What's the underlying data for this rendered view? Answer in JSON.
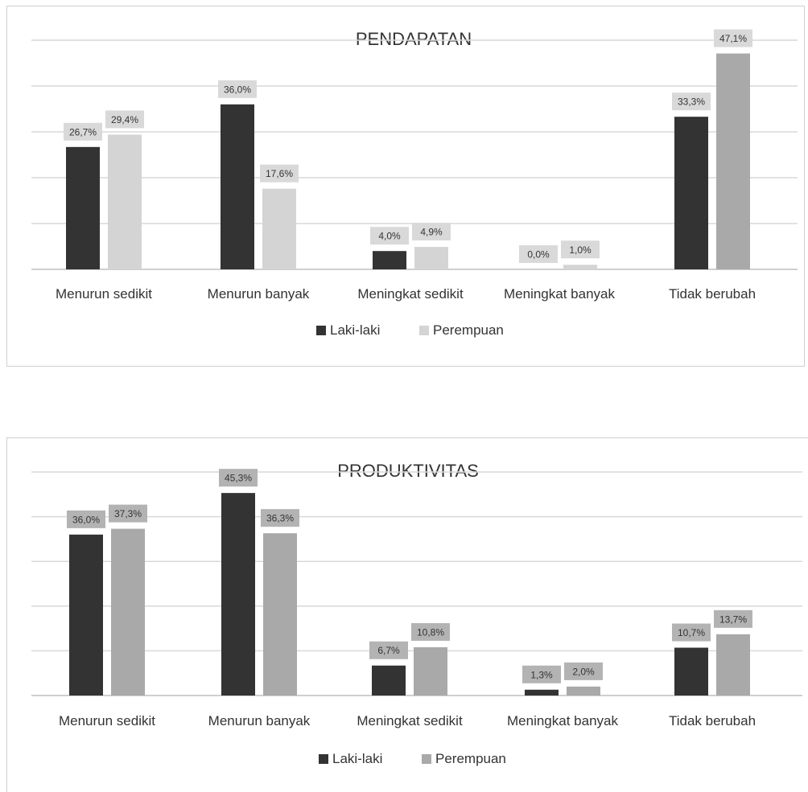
{
  "chart_data": [
    {
      "type": "bar",
      "title": "PENDAPATAN",
      "categories": [
        "Menurun sedikit",
        "Menurun banyak",
        "Meningkat sedikit",
        "Meningkat banyak",
        "Tidak berubah"
      ],
      "series": [
        {
          "name": "Laki-laki",
          "values": [
            26.7,
            36.0,
            4.0,
            0.0,
            33.3
          ],
          "labels": [
            "26,7%",
            "36,0%",
            "4,0%",
            "0,0%",
            "33,3%"
          ],
          "color": "#333333"
        },
        {
          "name": "Perempuan",
          "values": [
            29.4,
            17.6,
            4.9,
            1.0,
            47.1
          ],
          "labels": [
            "29,4%",
            "17,6%",
            "4,9%",
            "1,0%",
            "47,1%"
          ],
          "color": "#d4d4d4",
          "last_color": "#a9a9a9"
        }
      ],
      "ylim": [
        0,
        50
      ],
      "grid": true,
      "legend_position": "bottom",
      "label_box_color": "#d9d9d9"
    },
    {
      "type": "bar",
      "title": "PRODUKTIVITAS",
      "categories": [
        "Menurun sedikit",
        "Menurun banyak",
        "Meningkat sedikit",
        "Meningkat banyak",
        "Tidak berubah"
      ],
      "series": [
        {
          "name": "Laki-laki",
          "values": [
            36.0,
            45.3,
            6.7,
            1.3,
            10.7
          ],
          "labels": [
            "36,0%",
            "45,3%",
            "6,7%",
            "1,3%",
            "10,7%"
          ],
          "color": "#333333"
        },
        {
          "name": "Perempuan",
          "values": [
            37.3,
            36.3,
            10.8,
            2.0,
            13.7
          ],
          "labels": [
            "37,3%",
            "36,3%",
            "10,8%",
            "2,0%",
            "13,7%"
          ],
          "color": "#a9a9a9"
        }
      ],
      "ylim": [
        0,
        50
      ],
      "grid": true,
      "legend_position": "bottom",
      "label_box_color": "#b3b3b3"
    }
  ]
}
